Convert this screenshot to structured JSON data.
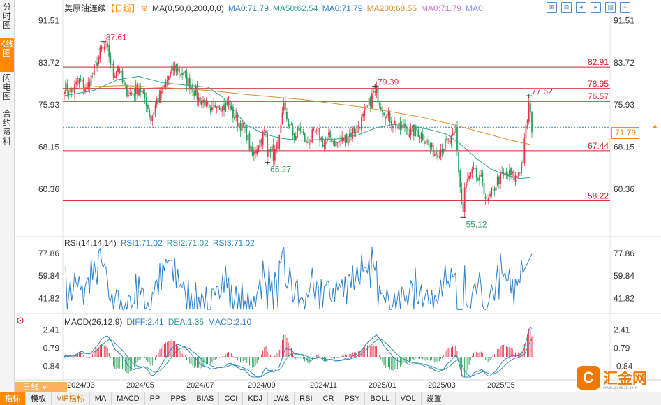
{
  "sidebar": {
    "tabs": [
      {
        "label": "分时图",
        "active": false
      },
      {
        "label": "K线图",
        "active": true
      },
      {
        "label": "闪电图",
        "active": false
      },
      {
        "label": "合约资料",
        "active": false
      }
    ]
  },
  "header": {
    "symbol": "美原油连续",
    "period_tag": "【日线】",
    "ma_params": "MA(0,50,0,200,0,0)",
    "ma_values": [
      {
        "label": "MA0:71.79",
        "color": "#2f80c8"
      },
      {
        "label": "MA50:62.54",
        "color": "#2aa198"
      },
      {
        "label": "MA0:71.79",
        "color": "#2f80c8"
      },
      {
        "label": "MA200:68.55",
        "color": "#e08a2c"
      },
      {
        "label": "MA0:71.79",
        "color": "#d070d0"
      },
      {
        "label": "MA0:",
        "color": "#8a8af0"
      }
    ],
    "tool_icons": [
      "expand-icon",
      "shrink-icon",
      "left-icon",
      "right-icon",
      "grid-icon",
      "settings-icon"
    ]
  },
  "colors": {
    "up": "#e8334a",
    "down": "#2aa05a",
    "ma50": "#2fa48a",
    "ma200": "#e08a2c",
    "hline": "#d0202a",
    "rsi": "#2f80c8",
    "diff": "#2f80c8",
    "dea": "#2aa198",
    "accent": "#ff8a00"
  },
  "price_axis": {
    "ticks": [
      "91.51",
      "83.72",
      "75.93",
      "68.15",
      "60.36"
    ],
    "current": "71.79"
  },
  "level_lines": [
    "82.91",
    "78.95",
    "76.57",
    "67.44",
    "58.22"
  ],
  "annotations": [
    {
      "label": "87.61",
      "type": "high"
    },
    {
      "label": "65.27",
      "type": "low"
    },
    {
      "label": "79.39",
      "type": "high"
    },
    {
      "label": "55.12",
      "type": "low"
    },
    {
      "label": "77.62",
      "type": "high"
    }
  ],
  "rsi": {
    "title": "RSI(14,14,14)",
    "values": [
      {
        "label": "RSI1:71.02",
        "color": "#2f80c8"
      },
      {
        "label": "RSI2:71.02",
        "color": "#2aa198"
      },
      {
        "label": "RSI3:71.02",
        "color": "#2f80c8"
      }
    ],
    "ticks": [
      "77.86",
      "59.84",
      "41.82"
    ]
  },
  "macd": {
    "title": "MACD(26,12,9)",
    "values": [
      {
        "label": "DIFF:2.41",
        "color": "#2f80c8"
      },
      {
        "label": "DEA:1.35",
        "color": "#2aa198"
      },
      {
        "label": "MACD:2.10",
        "color": "#2f80c8"
      }
    ],
    "ticks": [
      "2.41",
      "0.79",
      "-0.84"
    ]
  },
  "x_axis": [
    "2024/03",
    "2024/05",
    "2024/07",
    "2024/09",
    "2024/11",
    "2025/01",
    "2025/03",
    "2025/05"
  ],
  "period_button": "日线",
  "bottom_tabs": [
    {
      "label": "指标",
      "active": true
    },
    {
      "label": "模板",
      "active": false
    },
    {
      "label": "VIP指标",
      "active": false,
      "vip": true
    },
    {
      "label": "MA",
      "active": false
    },
    {
      "label": "MACD",
      "active": false
    },
    {
      "label": "PP",
      "active": false
    },
    {
      "label": "PPS",
      "active": false
    },
    {
      "label": "BIAS",
      "active": false
    },
    {
      "label": "CCI",
      "active": false
    },
    {
      "label": "KDJ",
      "active": false
    },
    {
      "label": "LW&",
      "active": false
    },
    {
      "label": "RSI",
      "active": false
    },
    {
      "label": "CR",
      "active": false
    },
    {
      "label": "PSY",
      "active": false
    },
    {
      "label": "BOLL",
      "active": false
    },
    {
      "label": "VOL",
      "active": false
    },
    {
      "label": "设置",
      "active": false
    }
  ],
  "logo": {
    "mark": "C",
    "text": "汇金网",
    "url": "www.gold678.com"
  },
  "chart_data": {
    "type": "candlestick",
    "title": "美原油连续",
    "period": "日线",
    "x_ticks": [
      "2024/03",
      "2024/05",
      "2024/07",
      "2024/09",
      "2024/11",
      "2025/01",
      "2025/03",
      "2025/05"
    ],
    "ylim": [
      54,
      93
    ],
    "y_ticks": [
      91.51,
      83.72,
      75.93,
      68.15,
      60.36
    ],
    "close_path": [
      [
        0,
        79.5
      ],
      [
        5,
        78.2
      ],
      [
        10,
        80.5
      ],
      [
        15,
        78.8
      ],
      [
        20,
        82.5
      ],
      [
        26,
        87.0
      ],
      [
        30,
        85.2
      ],
      [
        33,
        81.5
      ],
      [
        36,
        83.2
      ],
      [
        40,
        79.0
      ],
      [
        45,
        77.8
      ],
      [
        50,
        79.2
      ],
      [
        55,
        76.5
      ],
      [
        58,
        73.2
      ],
      [
        62,
        76.8
      ],
      [
        66,
        78.5
      ],
      [
        70,
        81.2
      ],
      [
        74,
        82.8
      ],
      [
        78,
        82.0
      ],
      [
        82,
        80.5
      ],
      [
        86,
        79.2
      ],
      [
        90,
        77.0
      ],
      [
        94,
        76.5
      ],
      [
        98,
        73.8
      ],
      [
        102,
        76.8
      ],
      [
        106,
        75.4
      ],
      [
        110,
        76.2
      ],
      [
        114,
        73.5
      ],
      [
        118,
        72.4
      ],
      [
        122,
        70.5
      ],
      [
        126,
        66.2
      ],
      [
        130,
        69.0
      ],
      [
        134,
        70.8
      ],
      [
        138,
        68.2
      ],
      [
        140,
        66.5
      ],
      [
        144,
        69.5
      ],
      [
        147,
        75.2
      ],
      [
        150,
        72.5
      ],
      [
        154,
        70.0
      ],
      [
        158,
        71.5
      ],
      [
        162,
        68.8
      ],
      [
        166,
        70.2
      ],
      [
        170,
        70.5
      ],
      [
        174,
        68.6
      ],
      [
        178,
        70.0
      ],
      [
        182,
        68.8
      ],
      [
        186,
        69.4
      ],
      [
        190,
        70.2
      ],
      [
        196,
        71.8
      ],
      [
        200,
        73.5
      ],
      [
        204,
        76.0
      ],
      [
        208,
        78.9
      ],
      [
        212,
        76.0
      ],
      [
        216,
        74.0
      ],
      [
        220,
        72.8
      ],
      [
        224,
        71.4
      ],
      [
        228,
        72.0
      ],
      [
        232,
        70.8
      ],
      [
        236,
        71.2
      ],
      [
        240,
        70.2
      ],
      [
        244,
        68.4
      ],
      [
        248,
        67.0
      ],
      [
        252,
        67.8
      ],
      [
        256,
        68.9
      ],
      [
        260,
        69.5
      ],
      [
        262,
        71.0
      ],
      [
        264,
        63.8
      ],
      [
        266,
        58.0
      ],
      [
        268,
        60.5
      ],
      [
        271,
        62.5
      ],
      [
        274,
        63.5
      ],
      [
        277,
        62.0
      ],
      [
        280,
        61.8
      ],
      [
        283,
        57.5
      ],
      [
        286,
        59.5
      ],
      [
        290,
        62.0
      ],
      [
        294,
        62.7
      ],
      [
        298,
        63.0
      ],
      [
        302,
        62.4
      ],
      [
        305,
        64.2
      ],
      [
        307,
        66.0
      ],
      [
        309,
        71.5
      ],
      [
        311,
        75.4
      ],
      [
        313,
        71.8
      ]
    ],
    "ma50": {
      "name": "MA50",
      "values": [
        [
          0,
          77.6
        ],
        [
          20,
          78.6
        ],
        [
          36,
          80.6
        ],
        [
          50,
          81.2
        ],
        [
          66,
          80.0
        ],
        [
          80,
          79.6
        ],
        [
          96,
          79.2
        ],
        [
          106,
          77.4
        ],
        [
          114,
          74.8
        ],
        [
          122,
          72.2
        ],
        [
          134,
          70.5
        ],
        [
          146,
          69.7
        ],
        [
          158,
          69.4
        ],
        [
          170,
          69.5
        ],
        [
          182,
          69.6
        ],
        [
          196,
          70.3
        ],
        [
          208,
          71.6
        ],
        [
          220,
          72.3
        ],
        [
          232,
          72.0
        ],
        [
          244,
          71.4
        ],
        [
          256,
          70.5
        ],
        [
          266,
          68.5
        ],
        [
          276,
          66.0
        ],
        [
          286,
          64.0
        ],
        [
          296,
          62.9
        ],
        [
          305,
          62.3
        ],
        [
          313,
          62.54
        ]
      ]
    },
    "ma200": {
      "name": "MA200",
      "values": [
        [
          0,
          78.5
        ],
        [
          20,
          79.3
        ],
        [
          40,
          79.5
        ],
        [
          60,
          79.2
        ],
        [
          80,
          78.9
        ],
        [
          100,
          78.5
        ],
        [
          120,
          77.9
        ],
        [
          140,
          77.4
        ],
        [
          160,
          76.9
        ],
        [
          180,
          76.2
        ],
        [
          200,
          75.5
        ],
        [
          220,
          74.6
        ],
        [
          240,
          73.6
        ],
        [
          260,
          72.3
        ],
        [
          280,
          70.8
        ],
        [
          300,
          69.3
        ],
        [
          313,
          68.55
        ]
      ]
    },
    "last_price": 71.79,
    "levels": [
      82.91,
      78.95,
      76.57,
      67.44,
      58.22
    ],
    "extremes": [
      {
        "index": 26,
        "value": 87.61
      },
      {
        "index": 136,
        "value": 65.27
      },
      {
        "index": 208,
        "value": 79.39
      },
      {
        "index": 267,
        "value": 55.12
      },
      {
        "index": 311,
        "value": 77.62
      }
    ],
    "rsi": {
      "ylim": [
        32,
        84
      ],
      "ticks": [
        77.86,
        59.84,
        41.82
      ],
      "last": 71.02
    },
    "macd": {
      "ylim": [
        -1.8,
        2.8
      ],
      "ticks": [
        2.41,
        0.79,
        -0.84
      ],
      "diff_last": 2.41,
      "dea_last": 1.35,
      "macd_last": 2.1
    }
  }
}
